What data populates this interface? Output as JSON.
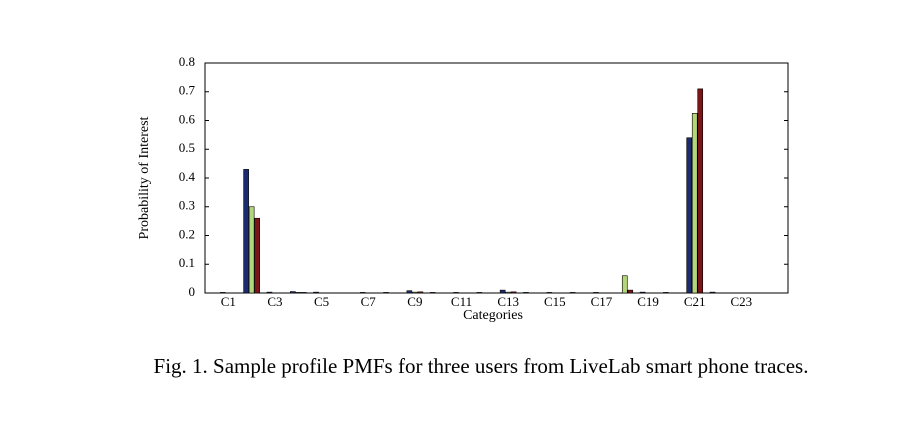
{
  "chart_data": {
    "type": "bar",
    "y_label": "Probability of Interest",
    "x_label": "Categories",
    "caption": "Fig. 1.  Sample profile PMFs for three users from LiveLab smart phone traces.",
    "categories": [
      "C1",
      null,
      "C3",
      null,
      "C5",
      null,
      "C7",
      null,
      "C9",
      null,
      "C11",
      null,
      "C13",
      null,
      "C15",
      null,
      "C17",
      null,
      "C19",
      null,
      "C21",
      null,
      "C23",
      null
    ],
    "series": [
      {
        "color": "#1c2a6e",
        "values": [
          0.002,
          0.43,
          0.003,
          0.005,
          0.003,
          0,
          0.002,
          0.002,
          0.008,
          0.002,
          0.002,
          0.002,
          0.01,
          0.002,
          0.002,
          0.002,
          0.002,
          0,
          0.003,
          0.002,
          0.54,
          0.003,
          0,
          0
        ]
      },
      {
        "color": "#b3d67a",
        "values": [
          0,
          0.3,
          0,
          0.002,
          0,
          0,
          0,
          0,
          0.003,
          0,
          0,
          0,
          0.003,
          0,
          0,
          0,
          0,
          0.06,
          0,
          0,
          0.625,
          0,
          0,
          0
        ]
      },
      {
        "color": "#7a1518",
        "values": [
          0,
          0.26,
          0,
          0.002,
          0,
          0,
          0,
          0,
          0.004,
          0,
          0,
          0,
          0.004,
          0,
          0,
          0,
          0,
          0.01,
          0,
          0,
          0.71,
          0,
          0,
          0
        ]
      }
    ],
    "ylim": [
      0,
      0.8
    ],
    "yticks": [
      0,
      0.1,
      0.2,
      0.3,
      0.4,
      0.5,
      0.6,
      0.7,
      0.8
    ]
  }
}
